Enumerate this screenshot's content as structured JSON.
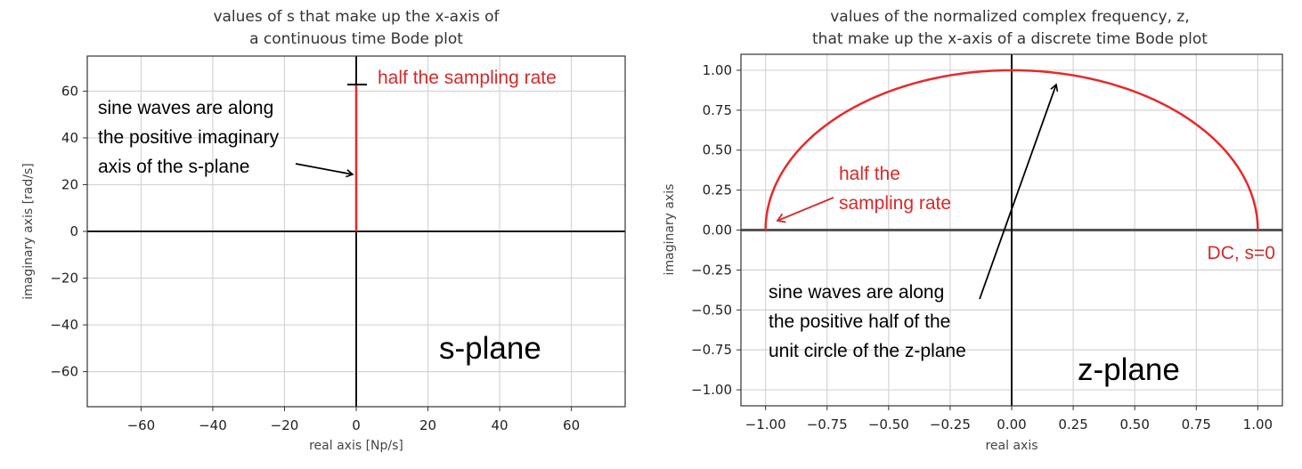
{
  "chart_data": [
    {
      "type": "line",
      "title": [
        "values of s that make up the x-axis of",
        "a continuous time Bode plot"
      ],
      "xlabel": "real axis [Np/s]",
      "ylabel": "imaginary axis [rad/s]",
      "xlim": [
        -75,
        75
      ],
      "ylim": [
        -75,
        75
      ],
      "xticks": [
        -60,
        -40,
        -20,
        0,
        20,
        40,
        60
      ],
      "yticks": [
        -60,
        -40,
        -20,
        0,
        20,
        40,
        60
      ],
      "xtick_labels": [
        "−60",
        "−40",
        "−20",
        "0",
        "20",
        "40",
        "60"
      ],
      "ytick_labels": [
        "−60",
        "−40",
        "−20",
        "0",
        "20",
        "40",
        "60"
      ],
      "grid": true,
      "series": [
        {
          "x": [
            0,
            0
          ],
          "y": [
            0,
            62.8
          ],
          "color": "#e8292b"
        }
      ],
      "annotations": {
        "sampling": {
          "text": "half the sampling rate",
          "color": "#d42a2a"
        },
        "sine": {
          "lines": [
            "sine waves are along",
            "the positive imaginary",
            "axis of the s-plane"
          ],
          "color": "#000000"
        },
        "plane_label": "s-plane"
      }
    },
    {
      "type": "line",
      "title": [
        "values of the normalized complex frequency, z,",
        "that make up the x-axis of a discrete time Bode plot"
      ],
      "xlabel": "real axis",
      "ylabel": "imaginary axis",
      "xlim": [
        -1.1,
        1.1
      ],
      "ylim": [
        -1.1,
        1.1
      ],
      "xticks": [
        -1.0,
        -0.75,
        -0.5,
        -0.25,
        0.0,
        0.25,
        0.5,
        0.75,
        1.0
      ],
      "yticks": [
        1.0,
        0.75,
        0.5,
        0.25,
        0.0,
        -0.25,
        -0.5,
        -0.75,
        -1.0
      ],
      "xtick_labels": [
        "−1.00",
        "−0.75",
        "−0.50",
        "−0.25",
        "0.00",
        "0.25",
        "0.50",
        "0.75",
        "1.00"
      ],
      "ytick_labels": [
        "1.00",
        "0.75",
        "0.50",
        "0.25",
        "0.00",
        "−0.25",
        "−0.50",
        "−0.75",
        "−1.00"
      ],
      "grid": true,
      "series": [
        {
          "curve": "upper half of unit circle",
          "angle_start_deg": 0,
          "angle_end_deg": 180,
          "color": "#e8292b"
        }
      ],
      "annotations": {
        "sampling": {
          "lines": [
            "half the",
            "sampling rate"
          ],
          "color": "#d42a2a"
        },
        "dc": {
          "text": "DC, s=0",
          "color": "#d42a2a"
        },
        "sine": {
          "lines": [
            "sine waves are along",
            "the positive half of the",
            "unit circle of the z-plane"
          ],
          "color": "#000000"
        },
        "plane_label": "z-plane"
      }
    }
  ]
}
